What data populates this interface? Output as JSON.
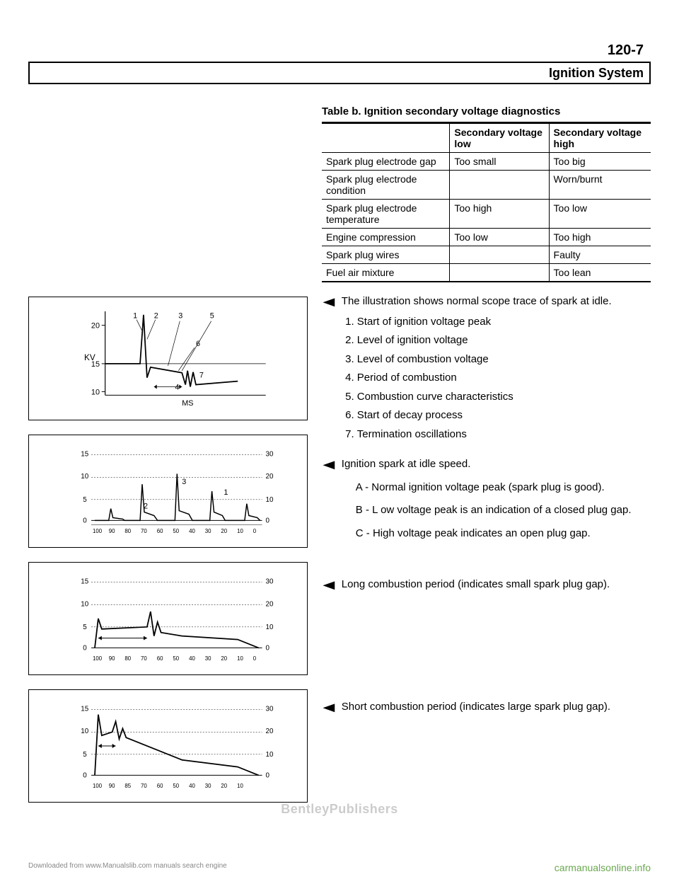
{
  "page_number": "120-7",
  "header_title": "Ignition System",
  "table": {
    "title": "Table b. Ignition secondary voltage diagnostics",
    "columns": [
      "",
      "Secondary voltage low",
      "Secondary voltage high"
    ],
    "rows": [
      [
        "Spark plug electrode gap",
        "Too small",
        "Too big"
      ],
      [
        "Spark plug electrode condition",
        "",
        "Worn/burnt"
      ],
      [
        "Spark plug electrode temperature",
        "Too high",
        "Too low"
      ],
      [
        "Engine compression",
        "Too low",
        "Too high"
      ],
      [
        "Spark plug wires",
        "",
        "Faulty"
      ],
      [
        "Fuel air mixture",
        "",
        "Too lean"
      ]
    ]
  },
  "block1": {
    "intro": "The illustration shows normal scope trace of spark at idle.",
    "items": [
      "Start of ignition voltage peak",
      "Level of ignition voltage",
      "Level of combustion voltage",
      "Period of combustion",
      "Combustion curve characteristics",
      "Start of decay process",
      "Termination oscillations"
    ]
  },
  "block2": {
    "intro": "Ignition spark at idle speed.",
    "a": "A - Normal ignition voltage peak (spark plug is good).",
    "b": "B - L ow voltage peak is an indication of a closed plug gap.",
    "c": "C - High voltage peak indicates an open plug gap."
  },
  "block3": "Long combustion period (indicates small spark plug gap).",
  "block4": "Short combustion period (indicates large spark plug gap).",
  "fig1": {
    "y_label": "KV",
    "y_ticks": [
      "20",
      "15",
      "10"
    ],
    "x_label": "MS",
    "annotations": [
      "1",
      "2",
      "3",
      "4",
      "5",
      "6",
      "7"
    ]
  },
  "fig2": {
    "y_left": [
      "15",
      "10",
      "5",
      "0"
    ],
    "y_right": [
      "30",
      "20",
      "10",
      "0"
    ],
    "x_ticks": [
      "100",
      "90",
      "80",
      "70",
      "60",
      "50",
      "40",
      "30",
      "20",
      "10",
      "0"
    ],
    "labels": [
      "1",
      "2",
      "3"
    ]
  },
  "fig3": {
    "y_left": [
      "15",
      "10",
      "5",
      "0"
    ],
    "y_right": [
      "30",
      "20",
      "10",
      "0"
    ],
    "x_ticks": [
      "100",
      "90",
      "80",
      "70",
      "60",
      "50",
      "40",
      "30",
      "20",
      "10",
      "0"
    ]
  },
  "fig4": {
    "y_left": [
      "15",
      "10",
      "5",
      "0"
    ],
    "y_right": [
      "30",
      "20",
      "10",
      "0"
    ],
    "x_ticks": [
      "100",
      "90",
      "85",
      "70",
      "60",
      "50",
      "40",
      "30",
      "20",
      "10"
    ]
  },
  "watermark": "BentleyPublishers",
  "footer_left": "Downloaded from www.Manualslib.com manuals search engine",
  "footer_right": "carmanualsonline.info"
}
